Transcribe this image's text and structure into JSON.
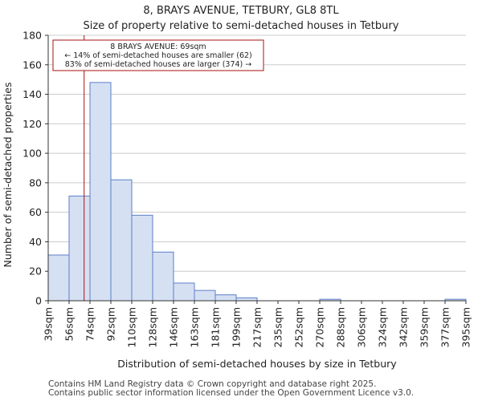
{
  "chart_data": {
    "type": "bar",
    "title": "8, BRAYS AVENUE, TETBURY, GL8 8TL",
    "subtitle": "Size of property relative to semi-detached houses in Tetbury",
    "xlabel": "Distribution of semi-detached houses by size in Tetbury",
    "ylabel": "Number of semi-detached properties",
    "bin_edges": [
      "39sqm",
      "56sqm",
      "74sqm",
      "92sqm",
      "110sqm",
      "128sqm",
      "146sqm",
      "163sqm",
      "181sqm",
      "199sqm",
      "217sqm",
      "235sqm",
      "252sqm",
      "270sqm",
      "288sqm",
      "306sqm",
      "324sqm",
      "342sqm",
      "359sqm",
      "377sqm",
      "395sqm"
    ],
    "values": [
      31,
      71,
      148,
      82,
      58,
      33,
      12,
      7,
      4,
      2,
      0,
      0,
      0,
      1,
      0,
      0,
      0,
      0,
      0,
      1
    ],
    "ylim": [
      0,
      180
    ],
    "yticks": [
      0,
      20,
      40,
      60,
      80,
      100,
      120,
      140,
      160,
      180
    ],
    "marker": {
      "value_sqm": 69,
      "bin_position": 1.72,
      "color": "#aa1111"
    },
    "annotation": {
      "line1": "8 BRAYS AVENUE: 69sqm",
      "line2": "← 14% of semi-detached houses are smaller (62)",
      "line3": "83% of semi-detached houses are larger (374) →"
    },
    "colors": {
      "bar_fill": "#d6e0f3",
      "bar_stroke": "#5b7fc7",
      "axis": "#333333"
    }
  },
  "footer": {
    "line1": "Contains HM Land Registry data © Crown copyright and database right 2025.",
    "line2": "Contains public sector information licensed under the Open Government Licence v3.0."
  }
}
